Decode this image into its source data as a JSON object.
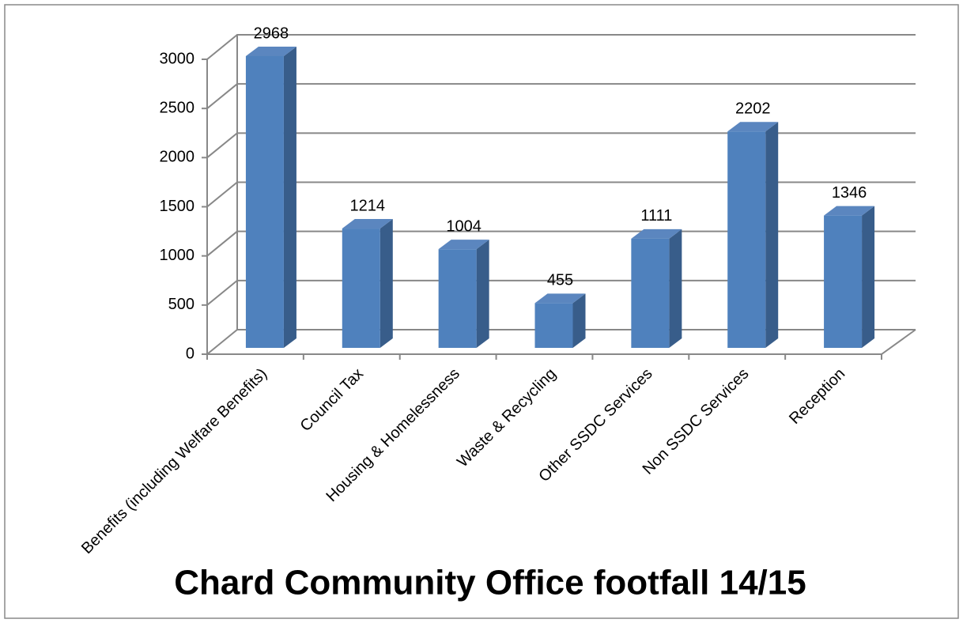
{
  "chart_data": {
    "type": "bar",
    "title": "Chard Community Office footfall 14/15",
    "categories": [
      "Benefits (including Welfare Benefits)",
      "Council Tax",
      "Housing & Homelessness",
      "Waste & Recycling",
      "Other SSDC Services",
      "Non SSDC Services",
      "Reception"
    ],
    "values": [
      2968,
      1214,
      1004,
      455,
      1111,
      2202,
      1346
    ],
    "color": "#4f81bd",
    "ylim": [
      0,
      3000
    ],
    "yticks": [
      0,
      500,
      1000,
      1500,
      2000,
      2500,
      3000
    ],
    "grid": true
  }
}
